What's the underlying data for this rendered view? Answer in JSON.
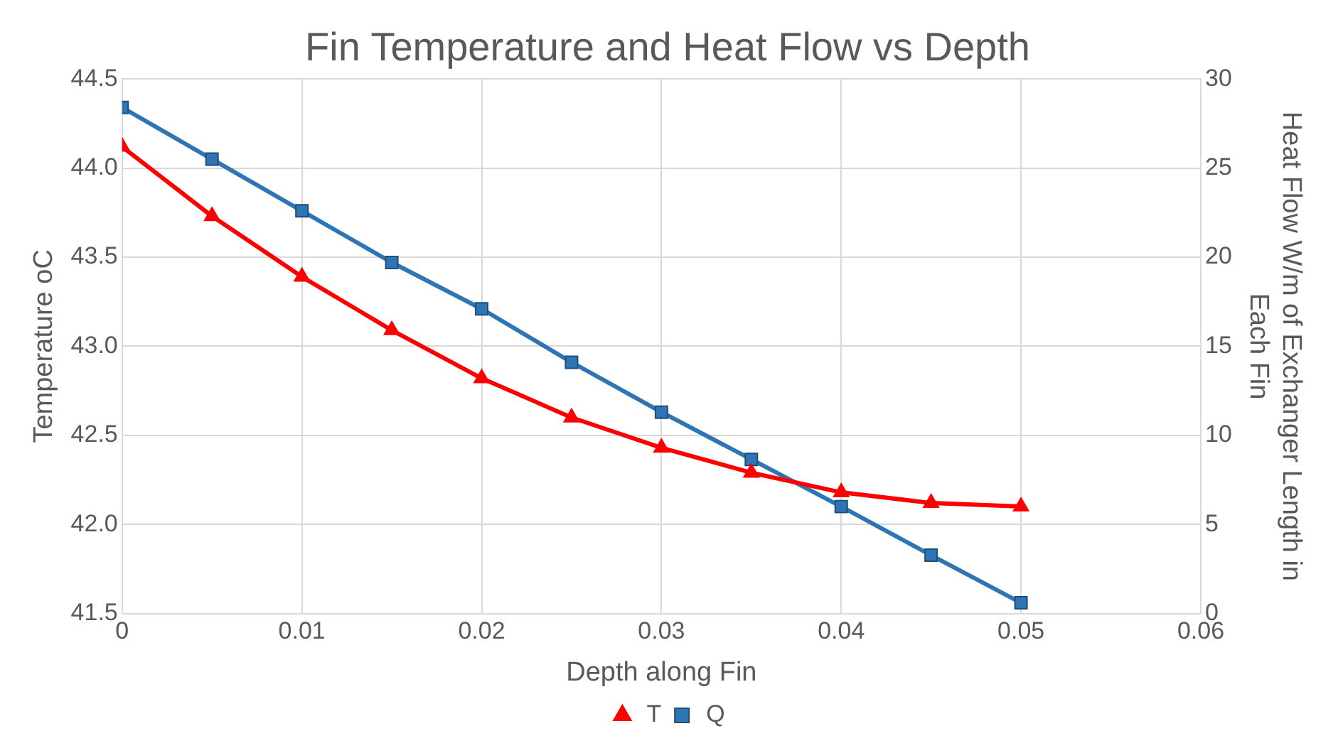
{
  "chart_data": {
    "type": "line",
    "title": "Fin Temperature and Heat Flow vs Depth",
    "xlabel": "Depth along Fin",
    "ylabel": "Temperature oC",
    "y2label": "Heat Flow W/m of Exchanger Length in Each Fin",
    "x": [
      0,
      0.005,
      0.01,
      0.015,
      0.02,
      0.025,
      0.03,
      0.035,
      0.04,
      0.045,
      0.05
    ],
    "series": [
      {
        "name": "T",
        "color": "#ff0000",
        "marker": "triangle",
        "values": [
          44.12,
          43.73,
          43.39,
          43.09,
          42.82,
          42.6,
          42.43,
          42.29,
          42.18,
          42.12,
          42.1
        ]
      },
      {
        "name": "Q",
        "color": "#2e75b6",
        "marker": "square",
        "axis": "y2",
        "values": [
          28.4,
          25.5,
          22.6,
          19.7,
          17.1,
          14.1,
          11.3,
          8.65,
          6.0,
          3.27,
          0.6
        ]
      }
    ],
    "xlim": [
      0,
      0.06
    ],
    "xticks": [
      0,
      0.01,
      0.02,
      0.03,
      0.04,
      0.05,
      0.06
    ],
    "ylim": [
      41.5,
      44.5
    ],
    "yticks": [
      {
        "value": 41.5,
        "label": "41.5"
      },
      {
        "value": 42,
        "label": "42.0"
      },
      {
        "value": 42.5,
        "label": "42.5"
      },
      {
        "value": 43,
        "label": "43.0"
      },
      {
        "value": 43.5,
        "label": "43.5"
      },
      {
        "value": 44,
        "label": "44.0"
      },
      {
        "value": 44.5,
        "label": "44.5"
      }
    ],
    "y2lim": [
      0,
      30
    ],
    "y2ticks": [
      0,
      5,
      10,
      15,
      20,
      25,
      30
    ],
    "grid": true,
    "legend": "bottom"
  }
}
